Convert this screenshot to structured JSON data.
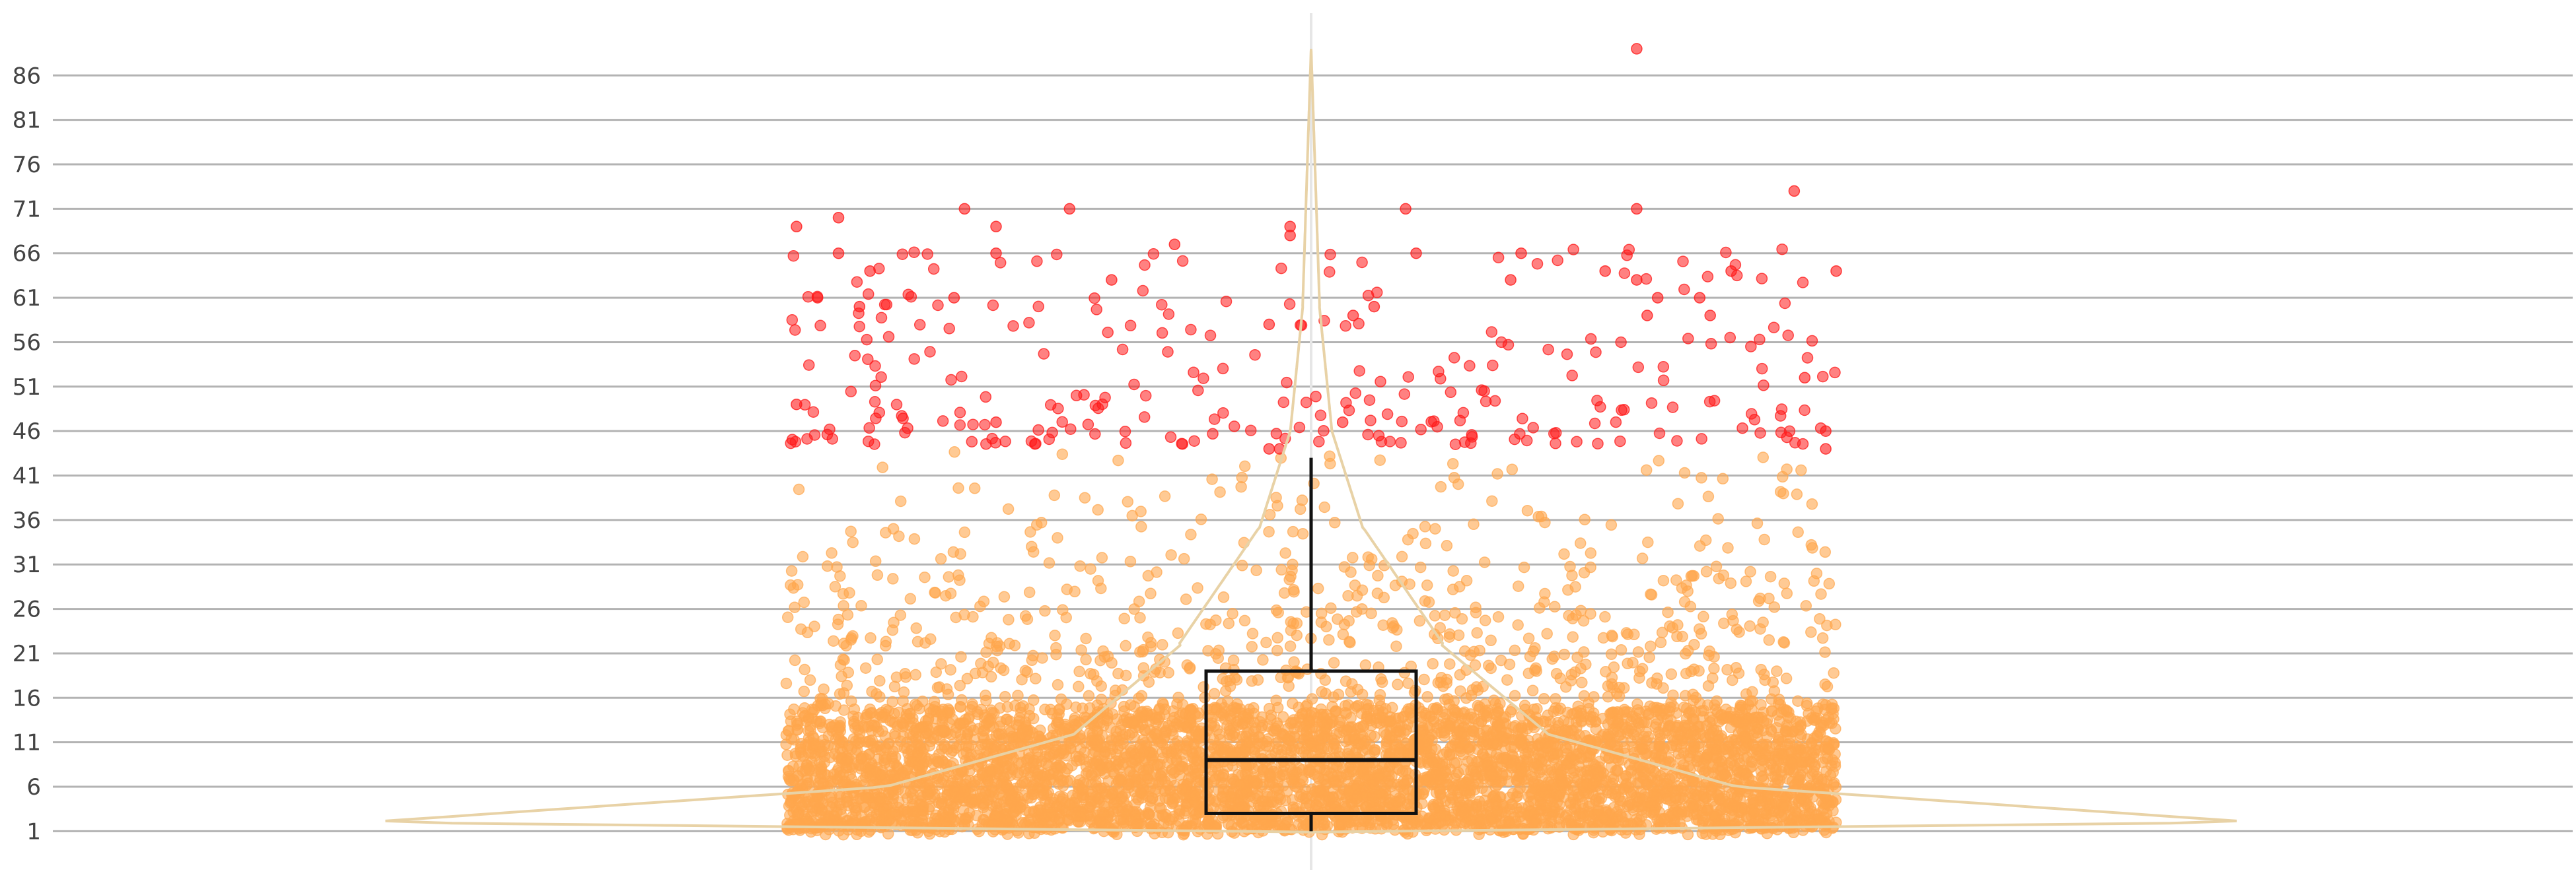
{
  "chart_data": {
    "type": "scatter",
    "title": "",
    "xlabel": "",
    "ylabel": "",
    "ylim": [
      -3.5,
      93
    ],
    "yticks": [
      "1",
      "6",
      "11",
      "16",
      "21",
      "26",
      "31",
      "36",
      "41",
      "46",
      "51",
      "56",
      "61",
      "66",
      "71",
      "76",
      "81",
      "86"
    ],
    "grid": true,
    "legend": "none",
    "overlays": [
      "violin",
      "box"
    ],
    "point_count_approx": 6000,
    "point_distribution": {
      "x_range": [
        -0.5,
        0.5
      ],
      "y_mode": "right-skewed, dense near 1, thinning to about 45",
      "outlier_threshold": 44.5
    },
    "box": {
      "q1": 3,
      "median": 9,
      "q3": 19,
      "whisker_low": 1,
      "whisker_high": 43,
      "x_range": [
        -0.1,
        0.1
      ]
    },
    "violin": {
      "y_top": 89,
      "max_half_width": 0.9,
      "mode_at": 2
    },
    "outliers_visible": [
      [
        0.31,
        89
      ],
      [
        0.46,
        73
      ],
      [
        0.31,
        71
      ],
      [
        -0.33,
        71
      ],
      [
        -0.23,
        71
      ],
      [
        0.09,
        71
      ],
      [
        -0.49,
        69
      ],
      [
        -0.45,
        70
      ],
      [
        -0.3,
        69
      ],
      [
        -0.02,
        69
      ],
      [
        -0.02,
        68
      ],
      [
        -0.13,
        67
      ],
      [
        0.2,
        66
      ],
      [
        -0.3,
        66
      ],
      [
        -0.45,
        66
      ],
      [
        0.1,
        66
      ],
      [
        0.5,
        64
      ],
      [
        0.4,
        64
      ],
      [
        0.31,
        63
      ],
      [
        0.28,
        64
      ],
      [
        0.19,
        63
      ],
      [
        -0.42,
        64
      ],
      [
        -0.19,
        63
      ],
      [
        -0.34,
        61
      ],
      [
        -0.47,
        61
      ],
      [
        0.37,
        61
      ],
      [
        0.33,
        61
      ],
      [
        0.06,
        60
      ],
      [
        0.04,
        59
      ],
      [
        -0.43,
        60
      ],
      [
        -0.04,
        58
      ],
      [
        0.38,
        59
      ],
      [
        0.32,
        59
      ],
      [
        0.47,
        52
      ],
      [
        0.49,
        46
      ],
      [
        0.49,
        44
      ],
      [
        -0.03,
        44
      ],
      [
        -0.04,
        44
      ],
      [
        0.03,
        47
      ],
      [
        -0.49,
        49
      ],
      [
        -0.3,
        47
      ]
    ]
  },
  "colors": {
    "points": "#ffa64d",
    "outliers": "#ff1a1a",
    "violin": "#e8d2a6",
    "axis_center": "#e6e6e6",
    "grid": "#b3b3b3",
    "box": "#111111",
    "tick_text": "#444444"
  }
}
